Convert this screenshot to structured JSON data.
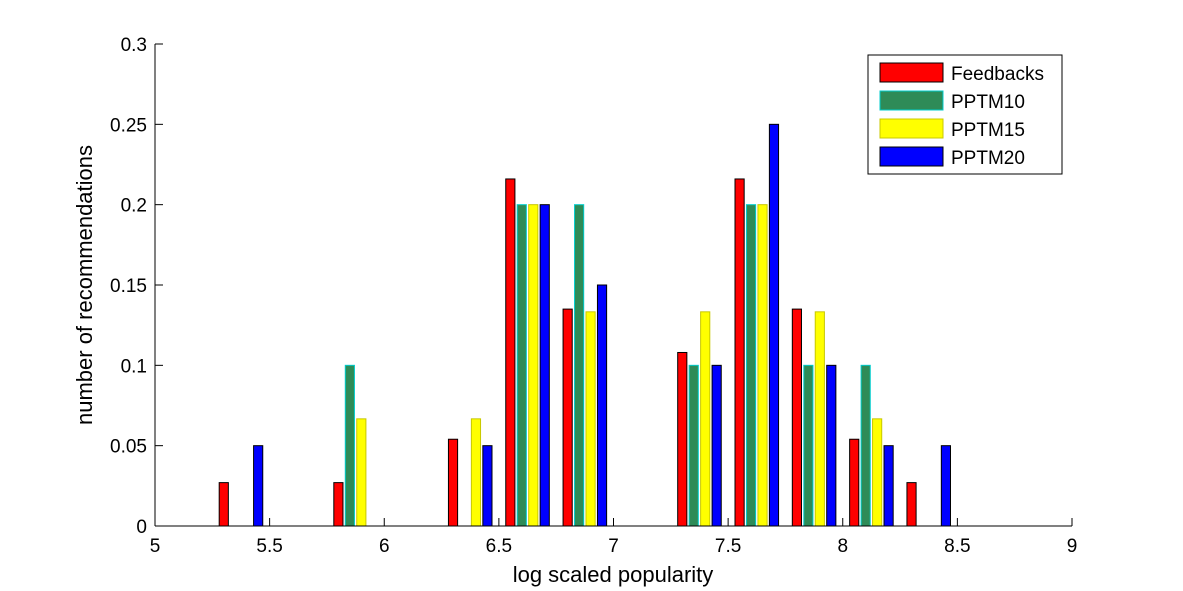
{
  "chart_data": {
    "type": "bar",
    "xlabel": "log scaled popularity",
    "ylabel": "number of recommendations",
    "xlim": [
      5,
      9
    ],
    "ylim": [
      0,
      0.3
    ],
    "xticks": [
      "5",
      "5.5",
      "6",
      "6.5",
      "7",
      "7.5",
      "8",
      "8.5",
      "9"
    ],
    "yticks": [
      "0",
      "0.05",
      "0.1",
      "0.15",
      "0.2",
      "0.25",
      "0.3"
    ],
    "x": [
      5.125,
      5.375,
      5.625,
      5.875,
      6.125,
      6.375,
      6.625,
      6.875,
      7.125,
      7.375,
      7.625,
      7.875,
      8.125,
      8.375,
      8.625,
      8.875
    ],
    "legend_position": "top-right",
    "grid": false,
    "series": [
      {
        "name": "Feedbacks",
        "color": "#ff0000",
        "edge": "#000000",
        "values": [
          0,
          0.027,
          0,
          0.027,
          0,
          0.054,
          0.216,
          0.135,
          0,
          0.108,
          0.216,
          0.135,
          0.054,
          0.027,
          0,
          0
        ]
      },
      {
        "name": "PPTM10",
        "color": "#2e8b57",
        "edge": "#00cccc",
        "values": [
          0,
          0,
          0,
          0.1,
          0,
          0,
          0.2,
          0.2,
          0,
          0.1,
          0.2,
          0.1,
          0.1,
          0,
          0,
          0
        ]
      },
      {
        "name": "PPTM15",
        "color": "#ffff00",
        "edge": "#c8c800",
        "values": [
          0,
          0,
          0,
          0.0667,
          0,
          0.0667,
          0.2,
          0.1333,
          0,
          0.1333,
          0.2,
          0.1333,
          0.0667,
          0,
          0,
          0
        ]
      },
      {
        "name": "PPTM20",
        "color": "#0000ff",
        "edge": "#000000",
        "values": [
          0,
          0.05,
          0,
          0,
          0,
          0.05,
          0.2,
          0.15,
          0,
          0.1,
          0.25,
          0.1,
          0.05,
          0.05,
          0,
          0
        ]
      }
    ]
  }
}
